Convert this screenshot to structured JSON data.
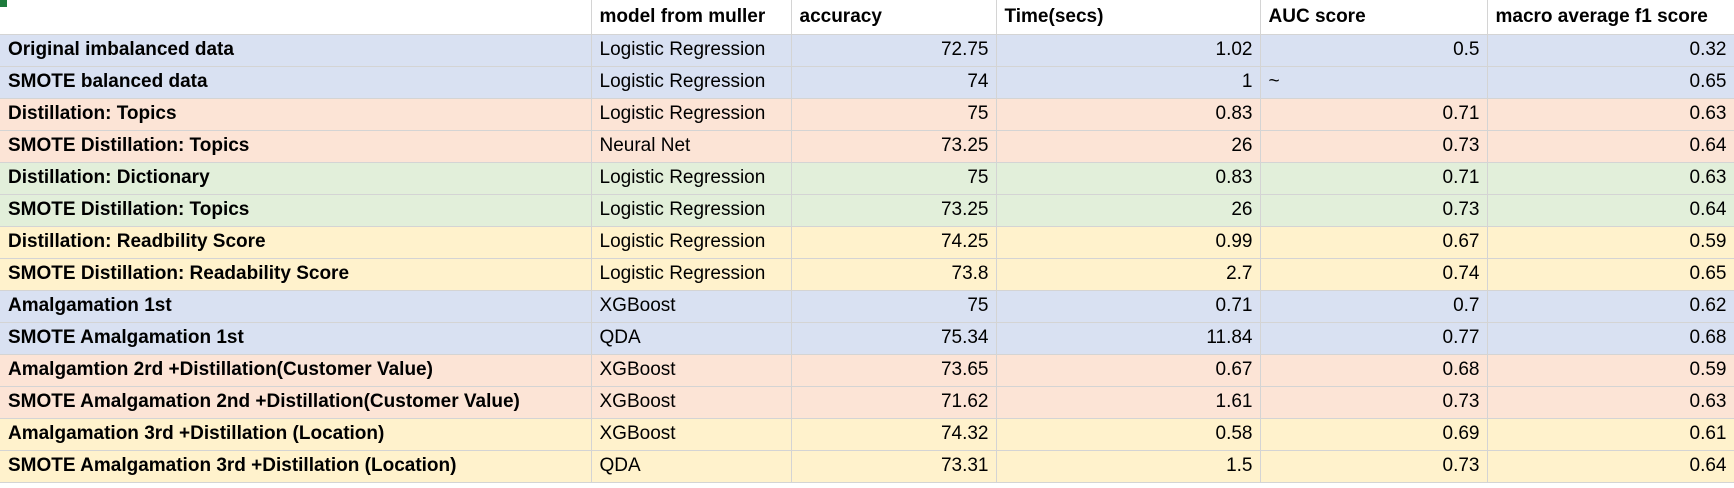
{
  "headers": [
    "",
    "model from muller",
    "accuracy",
    "Time(secs)",
    "AUC score",
    "macro average f1 score"
  ],
  "group_colors": {
    "blue": "#d9e1f2",
    "red": "#fce4d6",
    "green": "#e2efda",
    "yellow": "#fff2cc"
  },
  "rows": [
    {
      "name": "Original imbalanced data",
      "model": "Logistic Regression",
      "accuracy": "72.75",
      "time": "1.02",
      "auc": "0.5",
      "f1": "0.32",
      "group": "blue"
    },
    {
      "name": "SMOTE balanced data",
      "model": "Logistic Regression",
      "accuracy": "74",
      "time": "1",
      "auc": "",
      "auc_note": "~",
      "f1": "0.65",
      "group": "blue"
    },
    {
      "name": "Distillation: Topics",
      "model": "Logistic Regression",
      "accuracy": "75",
      "time": "0.83",
      "auc": "0.71",
      "f1": "0.63",
      "group": "red"
    },
    {
      "name": "SMOTE Distillation: Topics",
      "model": "Neural Net",
      "accuracy": "73.25",
      "time": "26",
      "auc": "0.73",
      "f1": "0.64",
      "group": "red"
    },
    {
      "name": "Distillation: Dictionary",
      "model": "Logistic Regression",
      "accuracy": "75",
      "time": "0.83",
      "auc": "0.71",
      "f1": "0.63",
      "group": "green"
    },
    {
      "name": "SMOTE Distillation: Topics",
      "model": "Logistic Regression",
      "accuracy": "73.25",
      "time": "26",
      "auc": "0.73",
      "f1": "0.64",
      "group": "green"
    },
    {
      "name": "Distillation: Readbility Score",
      "model": "Logistic Regression",
      "accuracy": "74.25",
      "time": "0.99",
      "auc": "0.67",
      "f1": "0.59",
      "group": "yellow"
    },
    {
      "name": "SMOTE Distillation: Readability Score",
      "model": "Logistic Regression",
      "accuracy": "73.8",
      "time": "2.7",
      "auc": "0.74",
      "f1": "0.65",
      "group": "yellow"
    },
    {
      "name": "Amalgamation 1st",
      "model": "XGBoost",
      "accuracy": "75",
      "time": "0.71",
      "auc": "0.7",
      "f1": "0.62",
      "group": "blue"
    },
    {
      "name": "SMOTE Amalgamation 1st",
      "model": "QDA",
      "accuracy": "75.34",
      "time": "11.84",
      "auc": "0.77",
      "f1": "0.68",
      "group": "blue"
    },
    {
      "name": "Amalgamtion 2rd +Distillation(Customer Value)",
      "model": "XGBoost",
      "accuracy": "73.65",
      "time": "0.67",
      "auc": "0.68",
      "f1": "0.59",
      "group": "red"
    },
    {
      "name": "SMOTE Amalgamation 2nd +Distillation(Customer Value)",
      "model": "XGBoost",
      "accuracy": "71.62",
      "time": "1.61",
      "auc": "0.73",
      "f1": "0.63",
      "group": "red"
    },
    {
      "name": "Amalgamation 3rd +Distillation (Location)",
      "model": "XGBoost",
      "accuracy": "74.32",
      "time": "0.58",
      "auc": "0.69",
      "f1": "0.61",
      "group": "yellow"
    },
    {
      "name": "SMOTE Amalgamation 3rd +Distillation (Location)",
      "model": "QDA",
      "accuracy": "73.31",
      "time": "1.5",
      "auc": "0.73",
      "f1": "0.64",
      "group": "yellow"
    }
  ]
}
